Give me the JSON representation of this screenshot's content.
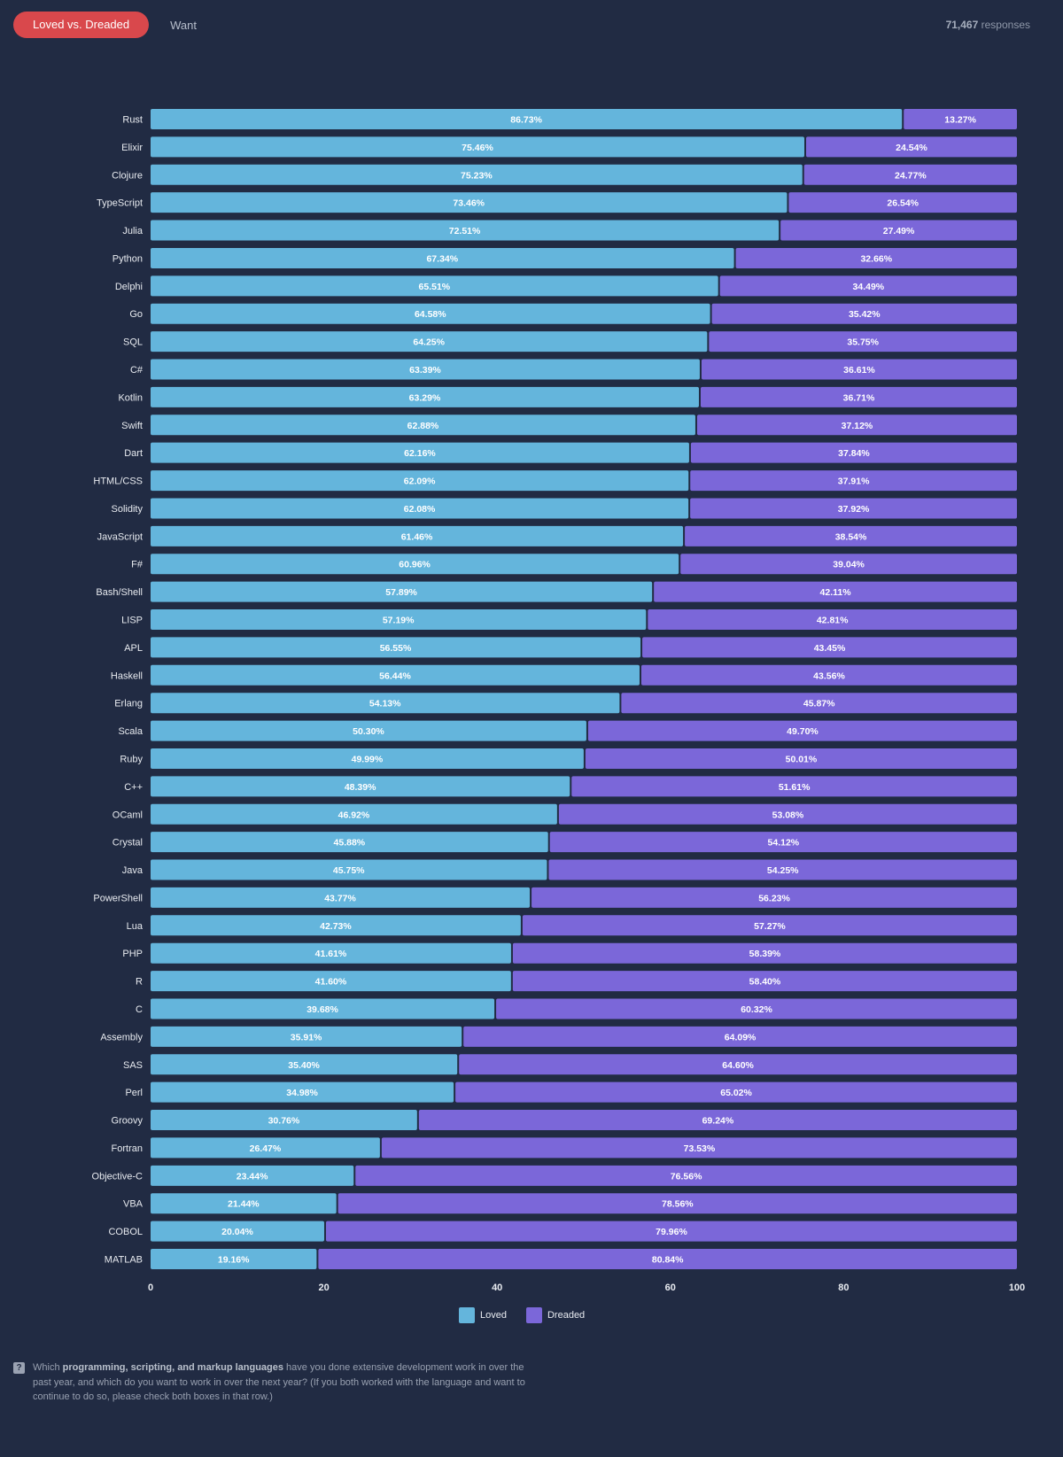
{
  "tabs": [
    {
      "label": "Loved vs. Dreaded",
      "active": true
    },
    {
      "label": "Want",
      "active": false
    }
  ],
  "responses": {
    "count": "71,467",
    "label": "responses"
  },
  "footer": {
    "icon": "question-icon",
    "pre": "Which ",
    "bold": "programming, scripting, and markup languages",
    "post": " have you done extensive development work in over the past year, and which do you want to work in over the next year? (If you both worked with the language and want to continue to do so, please check both boxes in that row.)"
  },
  "colors": {
    "background": "#212b43",
    "loved": "#64b5dc",
    "dreaded": "#7b67d9",
    "active_tab": "#d9484c"
  },
  "chart_data": {
    "type": "bar",
    "orientation": "horizontal",
    "stacked": true,
    "xlim": [
      0,
      100
    ],
    "xticks": [
      0,
      20,
      40,
      60,
      80,
      100
    ],
    "grid": false,
    "legend": "bottom",
    "categories": [
      "Rust",
      "Elixir",
      "Clojure",
      "TypeScript",
      "Julia",
      "Python",
      "Delphi",
      "Go",
      "SQL",
      "C#",
      "Kotlin",
      "Swift",
      "Dart",
      "HTML/CSS",
      "Solidity",
      "JavaScript",
      "F#",
      "Bash/Shell",
      "LISP",
      "APL",
      "Haskell",
      "Erlang",
      "Scala",
      "Ruby",
      "C++",
      "OCaml",
      "Crystal",
      "Java",
      "PowerShell",
      "Lua",
      "PHP",
      "R",
      "C",
      "Assembly",
      "SAS",
      "Perl",
      "Groovy",
      "Fortran",
      "Objective-C",
      "VBA",
      "COBOL",
      "MATLAB"
    ],
    "series": [
      {
        "name": "Loved",
        "values": [
          86.73,
          75.46,
          75.23,
          73.46,
          72.51,
          67.34,
          65.51,
          64.58,
          64.25,
          63.39,
          63.29,
          62.88,
          62.16,
          62.09,
          62.08,
          61.46,
          60.96,
          57.89,
          57.19,
          56.55,
          56.44,
          54.13,
          50.3,
          49.99,
          48.39,
          46.92,
          45.88,
          45.75,
          43.77,
          42.73,
          41.61,
          41.6,
          39.68,
          35.91,
          35.4,
          34.98,
          30.76,
          26.47,
          23.44,
          21.44,
          20.04,
          19.16
        ]
      },
      {
        "name": "Dreaded",
        "values": [
          13.27,
          24.54,
          24.77,
          26.54,
          27.49,
          32.66,
          34.49,
          35.42,
          35.75,
          36.61,
          36.71,
          37.12,
          37.84,
          37.91,
          37.92,
          38.54,
          39.04,
          42.11,
          42.81,
          43.45,
          43.56,
          45.87,
          49.7,
          50.01,
          51.61,
          53.08,
          54.12,
          54.25,
          56.23,
          57.27,
          58.39,
          58.4,
          60.32,
          64.09,
          64.6,
          65.02,
          69.24,
          73.53,
          76.56,
          78.56,
          79.96,
          80.84
        ]
      }
    ]
  }
}
